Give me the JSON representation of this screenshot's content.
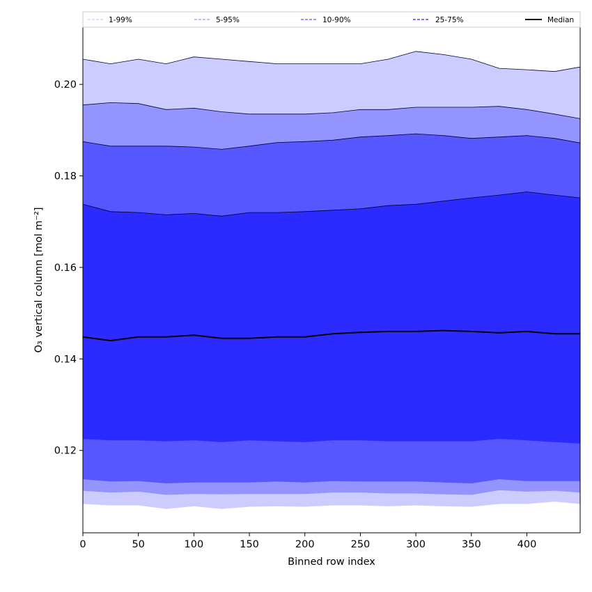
{
  "chart_data": {
    "type": "area",
    "title": "",
    "xlabel": "Binned row index",
    "ylabel": "O₃ vertical column [mol m⁻²]",
    "xlim": [
      0,
      448
    ],
    "ylim": [
      0.102,
      0.2125
    ],
    "x_ticks": [
      0,
      50,
      100,
      150,
      200,
      250,
      300,
      350,
      400
    ],
    "y_ticks": [
      0.12,
      0.14,
      0.16,
      0.18,
      0.2
    ],
    "x_tick_labels": [
      "0",
      "50",
      "100",
      "150",
      "200",
      "250",
      "300",
      "350",
      "400"
    ],
    "y_tick_labels": [
      "0.12",
      "0.14",
      "0.16",
      "0.18",
      "0.20"
    ],
    "legend_position": "top",
    "x": [
      0,
      25,
      50,
      75,
      100,
      125,
      150,
      175,
      200,
      225,
      250,
      275,
      300,
      325,
      350,
      375,
      400,
      425,
      448
    ],
    "bands": [
      {
        "name": "1-99%",
        "color": "#ccccff",
        "upper": [
          0.2055,
          0.2045,
          0.2055,
          0.2045,
          0.206,
          0.2055,
          0.205,
          0.2045,
          0.2045,
          0.2045,
          0.2045,
          0.2055,
          0.2072,
          0.2065,
          0.2055,
          0.2035,
          0.2032,
          0.2028,
          0.2038
        ],
        "lower": [
          0.1083,
          0.108,
          0.108,
          0.1072,
          0.1078,
          0.1072,
          0.1077,
          0.1078,
          0.1077,
          0.108,
          0.108,
          0.1078,
          0.108,
          0.1078,
          0.1077,
          0.1083,
          0.1083,
          0.1088,
          0.1083
        ]
      },
      {
        "name": "5-95%",
        "color": "#9494ff",
        "upper": [
          0.1955,
          0.196,
          0.1958,
          0.1945,
          0.1948,
          0.194,
          0.1935,
          0.1935,
          0.1935,
          0.1938,
          0.1945,
          0.1945,
          0.195,
          0.195,
          0.195,
          0.1952,
          0.1945,
          0.1935,
          0.1925
        ],
        "lower": [
          0.1112,
          0.1108,
          0.111,
          0.1103,
          0.1105,
          0.1104,
          0.1105,
          0.1105,
          0.1105,
          0.1108,
          0.1108,
          0.1106,
          0.1106,
          0.1104,
          0.1103,
          0.1113,
          0.111,
          0.1112,
          0.1108
        ]
      },
      {
        "name": "10-90%",
        "color": "#5757ff",
        "upper": [
          0.1875,
          0.1865,
          0.1865,
          0.1865,
          0.1863,
          0.1858,
          0.1865,
          0.1873,
          0.1875,
          0.1878,
          0.1885,
          0.1888,
          0.1892,
          0.1888,
          0.1882,
          0.1885,
          0.1888,
          0.1882,
          0.1872
        ],
        "lower": [
          0.1137,
          0.1132,
          0.1133,
          0.1128,
          0.113,
          0.113,
          0.113,
          0.1132,
          0.113,
          0.1133,
          0.1132,
          0.1132,
          0.1132,
          0.113,
          0.1128,
          0.1137,
          0.1133,
          0.1133,
          0.1133
        ]
      },
      {
        "name": "25-75%",
        "color": "#2b2bff",
        "upper": [
          0.1738,
          0.1722,
          0.172,
          0.1715,
          0.1718,
          0.1712,
          0.172,
          0.172,
          0.1722,
          0.1725,
          0.1728,
          0.1735,
          0.1738,
          0.1745,
          0.1752,
          0.1758,
          0.1765,
          0.1758,
          0.1752
        ],
        "lower": [
          0.1225,
          0.1222,
          0.1222,
          0.122,
          0.1222,
          0.1218,
          0.1222,
          0.122,
          0.1218,
          0.1222,
          0.1222,
          0.122,
          0.122,
          0.122,
          0.122,
          0.1225,
          0.1222,
          0.1218,
          0.1215
        ]
      }
    ],
    "median": {
      "name": "Median",
      "color": "#000000",
      "values": [
        0.1448,
        0.144,
        0.1448,
        0.1448,
        0.1452,
        0.1445,
        0.1445,
        0.1448,
        0.1448,
        0.1455,
        0.1458,
        0.146,
        0.146,
        0.1462,
        0.146,
        0.1457,
        0.146,
        0.1455,
        0.1455
      ]
    },
    "legend": [
      {
        "label": "1-99%",
        "color": "#ccccff",
        "style": "dashed"
      },
      {
        "label": "5-95%",
        "color": "#9494ff",
        "style": "dashed"
      },
      {
        "label": "10-90%",
        "color": "#5757ff",
        "style": "dashed"
      },
      {
        "label": "25-75%",
        "color": "#2b2bff",
        "style": "dashed"
      },
      {
        "label": "Median",
        "color": "#000000",
        "style": "solid"
      }
    ]
  }
}
